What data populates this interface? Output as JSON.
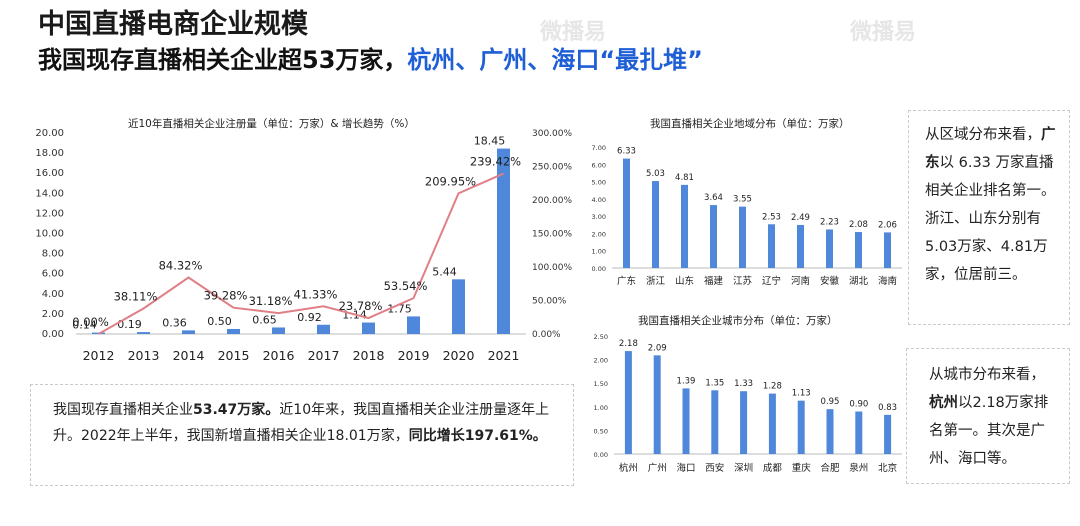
{
  "header": {
    "title": "中国直播电商企业规模",
    "subtitle_main": "我国现存直播相关企业超53万家，",
    "subtitle_highlight": "杭州、广州、海口“最扎堆”"
  },
  "watermark": "微播易",
  "colors": {
    "bar": "#4f88db",
    "line": "#e07f86",
    "highlight": "#1f5fd6"
  },
  "chart_data": [
    {
      "type": "bar",
      "title": "近10年直播相关企业注册量（单位：万家）& 增长趋势（%）",
      "categories": [
        "2012",
        "2013",
        "2014",
        "2015",
        "2016",
        "2017",
        "2018",
        "2019",
        "2020",
        "2021"
      ],
      "series": [
        {
          "name": "",
          "type": "bar",
          "values": [
            0.14,
            0.19,
            0.36,
            0.5,
            0.65,
            0.92,
            1.14,
            1.75,
            5.44,
            18.45
          ],
          "labels": [
            "0.14",
            "0.19",
            "0.36",
            "0.50",
            "0.65",
            "0.92",
            "1.14",
            "1.75",
            "5.44",
            "18.45"
          ]
        },
        {
          "name": "",
          "type": "line",
          "axis": "right",
          "values": [
            0.0,
            38.11,
            84.32,
            39.28,
            31.18,
            41.33,
            23.78,
            53.54,
            209.95,
            239.42
          ],
          "labels": [
            "0.00%",
            "38.11%",
            "84.32%",
            "39.28%",
            "31.18%",
            "41.33%",
            "23.78%",
            "53.54%",
            "209.95%",
            "239.42%"
          ]
        }
      ],
      "ylim": [
        0,
        20
      ],
      "yticks": [
        "0.00",
        "2.00",
        "4.00",
        "6.00",
        "8.00",
        "10.00",
        "12.00",
        "14.00",
        "16.00",
        "18.00",
        "20.00"
      ],
      "y2lim": [
        0,
        300
      ],
      "y2ticks": [
        "0.00%",
        "50.00%",
        "100.00%",
        "150.00%",
        "200.00%",
        "250.00%",
        "300.00%"
      ],
      "grid": false
    },
    {
      "type": "bar",
      "title": "我国直播相关企业地域分布（单位：万家）",
      "categories": [
        "广东",
        "浙江",
        "山东",
        "福建",
        "江苏",
        "辽宁",
        "河南",
        "安徽",
        "湖北",
        "海南"
      ],
      "values": [
        6.33,
        5.03,
        4.81,
        3.64,
        3.55,
        2.53,
        2.49,
        2.23,
        2.08,
        2.06
      ],
      "labels": [
        "6.33",
        "5.03",
        "4.81",
        "3.64",
        "3.55",
        "2.53",
        "2.49",
        "2.23",
        "2.08",
        "2.06"
      ],
      "ylim": [
        0,
        7
      ],
      "yticks": [
        "0.00",
        "1.00",
        "2.00",
        "3.00",
        "4.00",
        "5.00",
        "6.00",
        "7.00"
      ],
      "grid": false
    },
    {
      "type": "bar",
      "title": "我国直播相关企业城市分布（单位：万家）",
      "categories": [
        "杭州",
        "广州",
        "海口",
        "西安",
        "深圳",
        "成都",
        "重庆",
        "合肥",
        "泉州",
        "北京"
      ],
      "values": [
        2.18,
        2.09,
        1.39,
        1.35,
        1.33,
        1.28,
        1.13,
        0.95,
        0.9,
        0.83
      ],
      "labels": [
        "2.18",
        "2.09",
        "1.39",
        "1.35",
        "1.33",
        "1.28",
        "1.13",
        "0.95",
        "0.90",
        "0.83"
      ],
      "ylim": [
        0,
        2.5
      ],
      "yticks": [
        "0.00",
        "0.50",
        "1.00",
        "1.50",
        "2.00",
        "2.50"
      ],
      "grid": false
    }
  ],
  "notes": {
    "bottom": {
      "p1": "我国现存直播相关企业",
      "b1": "53.47万家。",
      "p2": "近10年来，我国直播相关企业注册量逐年上升。2022年上半年，我国新增直播相关企业18.01万家，",
      "b2": "同比增长197.61%。"
    },
    "region": {
      "p1": "从区域分布来看，",
      "b1": "广东",
      "p2": "以 6.33 万家直播相关企业排名第一。浙江、山东分别有5.03万家、4.81万家，位居前三。"
    },
    "city": {
      "p1": "从城市分布来看，",
      "b1": "杭州",
      "p2": "以2.18万家排名第一。其次是广州、海口等。"
    }
  }
}
